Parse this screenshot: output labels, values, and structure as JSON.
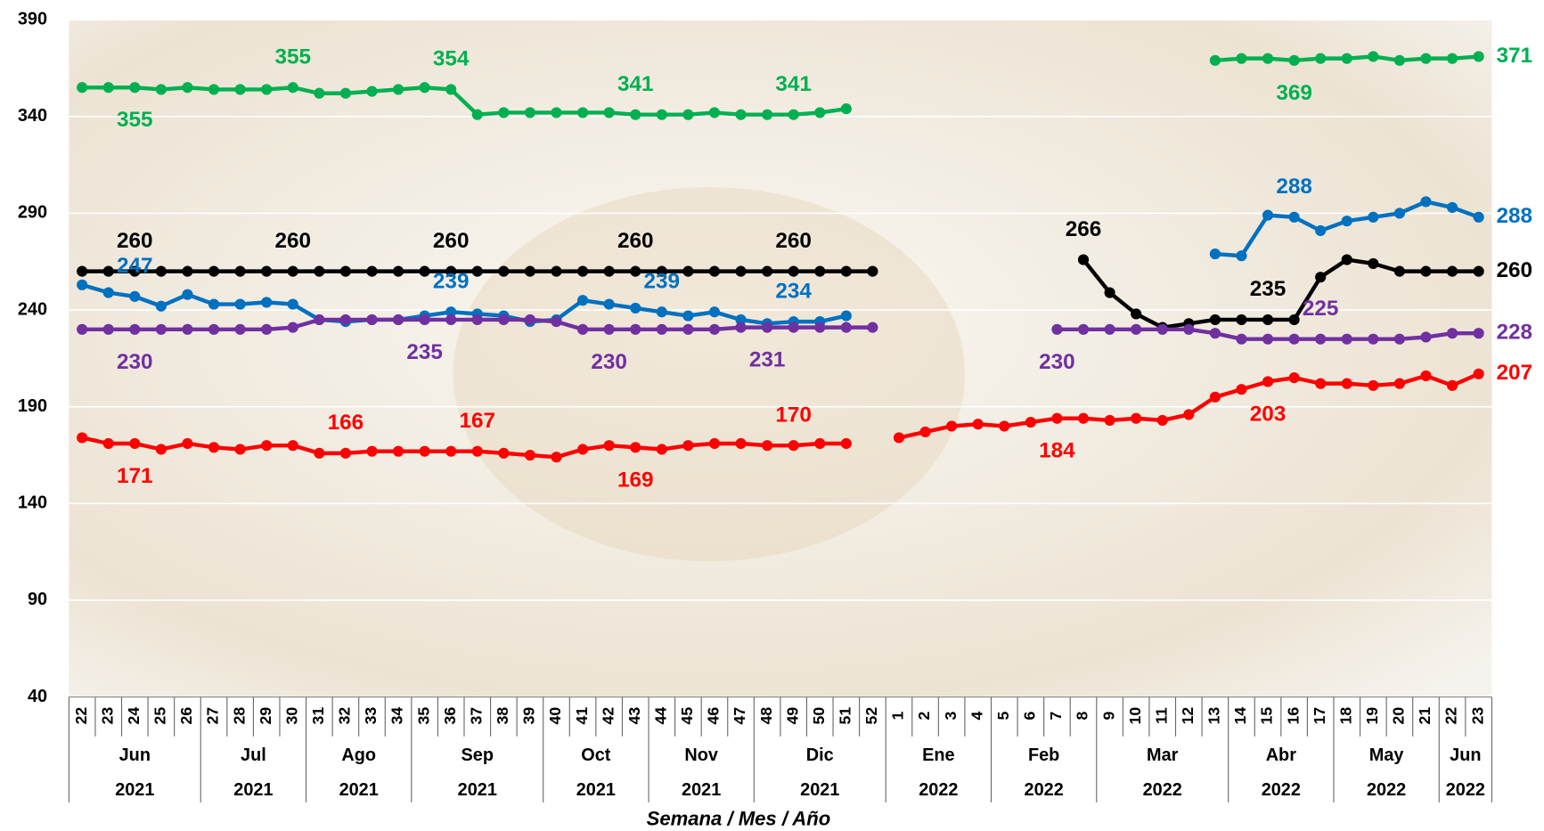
{
  "chart_data": {
    "type": "line",
    "x_label": "Semana / Mes / Año",
    "categories": [
      "22",
      "23",
      "24",
      "25",
      "26",
      "27",
      "28",
      "29",
      "30",
      "31",
      "32",
      "33",
      "34",
      "35",
      "36",
      "37",
      "38",
      "39",
      "40",
      "41",
      "42",
      "43",
      "44",
      "45",
      "46",
      "47",
      "48",
      "49",
      "50",
      "51",
      "52",
      "1",
      "2",
      "3",
      "4",
      "5",
      "6",
      "7",
      "8",
      "9",
      "10",
      "11",
      "12",
      "13",
      "14",
      "15",
      "16",
      "17",
      "18",
      "19",
      "20",
      "21",
      "22",
      "23"
    ],
    "months": [
      "Jun",
      null,
      null,
      null,
      null,
      "Jul",
      null,
      null,
      null,
      "Ago",
      null,
      null,
      null,
      "Sep",
      null,
      null,
      null,
      null,
      "Oct",
      null,
      null,
      null,
      "Nov",
      null,
      null,
      null,
      "Dic",
      null,
      null,
      null,
      null,
      "Ene",
      null,
      null,
      null,
      "Feb",
      null,
      null,
      null,
      "Mar",
      null,
      null,
      null,
      null,
      "Abr",
      null,
      null,
      null,
      "May",
      null,
      null,
      null,
      "Jun",
      null
    ],
    "years": [
      "2021",
      null,
      null,
      null,
      null,
      "2021",
      null,
      null,
      null,
      "2021",
      null,
      null,
      null,
      "2021",
      null,
      null,
      null,
      null,
      "2021",
      null,
      null,
      null,
      "2021",
      null,
      null,
      null,
      "2021",
      null,
      null,
      null,
      null,
      "2022",
      null,
      null,
      null,
      "2022",
      null,
      null,
      null,
      "2022",
      null,
      null,
      null,
      null,
      "2022",
      null,
      null,
      null,
      "2022",
      null,
      null,
      null,
      "2022",
      null
    ],
    "ylim": [
      40,
      390
    ],
    "yticks": [
      40,
      90,
      140,
      190,
      240,
      290,
      340,
      390
    ],
    "grid": true,
    "series": [
      {
        "color": "#00b050",
        "values": [
          355,
          355,
          355,
          354,
          355,
          354,
          354,
          354,
          355,
          352,
          352,
          353,
          354,
          355,
          354,
          341,
          342,
          342,
          342,
          342,
          342,
          341,
          341,
          341,
          342,
          341,
          341,
          341,
          342,
          344,
          null,
          null,
          null,
          null,
          null,
          null,
          null,
          null,
          null,
          null,
          null,
          null,
          null,
          369,
          370,
          370,
          369,
          370,
          370,
          371,
          369,
          370,
          370,
          371
        ],
        "value_labels": [
          null,
          null,
          "355",
          null,
          null,
          null,
          null,
          null,
          "355",
          null,
          null,
          null,
          null,
          null,
          "354",
          null,
          null,
          null,
          null,
          null,
          null,
          "341",
          null,
          null,
          null,
          null,
          null,
          "341",
          null,
          null,
          null,
          null,
          null,
          null,
          null,
          null,
          null,
          null,
          null,
          null,
          null,
          null,
          null,
          null,
          null,
          null,
          "369",
          null,
          null,
          null,
          null,
          null,
          null,
          "371"
        ]
      },
      {
        "color": "#000000",
        "values": [
          260,
          260,
          260,
          260,
          260,
          260,
          260,
          260,
          260,
          260,
          260,
          260,
          260,
          260,
          260,
          260,
          260,
          260,
          260,
          260,
          260,
          260,
          260,
          260,
          260,
          260,
          260,
          260,
          260,
          260,
          260,
          null,
          null,
          null,
          null,
          null,
          null,
          null,
          266,
          249,
          238,
          231,
          233,
          235,
          235,
          235,
          235,
          257,
          266,
          264,
          260,
          260,
          260,
          260
        ],
        "value_labels": [
          null,
          null,
          "260",
          null,
          null,
          null,
          null,
          null,
          "260",
          null,
          null,
          null,
          null,
          null,
          "260",
          null,
          null,
          null,
          null,
          null,
          null,
          "260",
          null,
          null,
          null,
          null,
          null,
          "260",
          null,
          null,
          null,
          null,
          null,
          null,
          null,
          null,
          null,
          null,
          "266",
          null,
          null,
          null,
          null,
          null,
          null,
          "235",
          null,
          null,
          null,
          null,
          null,
          null,
          null,
          "260"
        ]
      },
      {
        "color": "#0070c0",
        "values": [
          253,
          249,
          247,
          242,
          248,
          243,
          243,
          244,
          243,
          235,
          234,
          235,
          235,
          237,
          239,
          238,
          237,
          234,
          235,
          245,
          243,
          241,
          239,
          237,
          239,
          235,
          233,
          234,
          234,
          237,
          null,
          null,
          null,
          null,
          null,
          null,
          null,
          null,
          null,
          null,
          null,
          null,
          null,
          269,
          268,
          289,
          288,
          281,
          286,
          288,
          290,
          296,
          293,
          288
        ],
        "value_labels": [
          null,
          null,
          "247",
          null,
          null,
          null,
          null,
          null,
          null,
          null,
          null,
          null,
          null,
          null,
          "239",
          null,
          null,
          null,
          null,
          null,
          null,
          null,
          "239",
          null,
          null,
          null,
          null,
          "234",
          null,
          null,
          null,
          null,
          null,
          null,
          null,
          null,
          null,
          null,
          null,
          null,
          null,
          null,
          null,
          null,
          null,
          null,
          "288",
          null,
          null,
          null,
          null,
          null,
          null,
          "288"
        ]
      },
      {
        "color": "#7030a0",
        "values": [
          230,
          230,
          230,
          230,
          230,
          230,
          230,
          230,
          231,
          235,
          235,
          235,
          235,
          235,
          235,
          235,
          235,
          235,
          234,
          230,
          230,
          230,
          230,
          230,
          230,
          231,
          231,
          231,
          231,
          231,
          231,
          null,
          null,
          null,
          null,
          null,
          null,
          230,
          230,
          230,
          230,
          230,
          230,
          228,
          225,
          225,
          225,
          225,
          225,
          225,
          225,
          226,
          228,
          228
        ],
        "value_labels": [
          null,
          null,
          "230",
          null,
          null,
          null,
          null,
          null,
          null,
          null,
          null,
          null,
          null,
          "235",
          null,
          null,
          null,
          null,
          null,
          null,
          "230",
          null,
          null,
          null,
          null,
          null,
          "231",
          null,
          null,
          null,
          null,
          null,
          null,
          null,
          null,
          null,
          null,
          "230",
          null,
          null,
          null,
          null,
          null,
          null,
          null,
          null,
          null,
          "225",
          null,
          null,
          null,
          null,
          null,
          "228"
        ]
      },
      {
        "color": "#ff0000",
        "values": [
          174,
          171,
          171,
          168,
          171,
          169,
          168,
          170,
          170,
          166,
          166,
          167,
          167,
          167,
          167,
          167,
          166,
          165,
          164,
          168,
          170,
          169,
          168,
          170,
          171,
          171,
          170,
          170,
          171,
          171,
          null,
          174,
          177,
          180,
          181,
          180,
          182,
          184,
          184,
          183,
          184,
          183,
          186,
          195,
          199,
          203,
          205,
          202,
          202,
          201,
          202,
          206,
          201,
          207
        ],
        "value_labels": [
          null,
          null,
          "171",
          null,
          null,
          null,
          null,
          null,
          null,
          null,
          "166",
          null,
          null,
          null,
          null,
          "167",
          null,
          null,
          null,
          null,
          null,
          "169",
          null,
          null,
          null,
          null,
          null,
          "170",
          null,
          null,
          null,
          null,
          null,
          null,
          null,
          null,
          null,
          "184",
          null,
          null,
          null,
          null,
          null,
          null,
          null,
          "203",
          null,
          null,
          null,
          null,
          null,
          null,
          null,
          "207"
        ]
      }
    ]
  }
}
